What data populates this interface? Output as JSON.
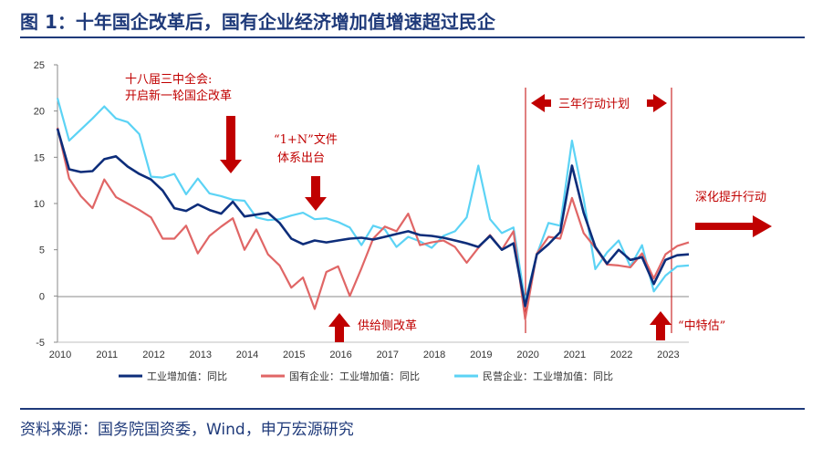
{
  "header": {
    "title": "图 1：十年国企改革后，国有企业经济增加值增速超过民企"
  },
  "footer": {
    "source": "资料来源：国务院国资委，Wind，申万宏源研究"
  },
  "colors": {
    "title": "#1f3a7a",
    "series_total": "#0d2d7a",
    "series_state": "#e06666",
    "series_private": "#5cd3f5",
    "annotation": "#c00000"
  },
  "chart_data": {
    "type": "line",
    "ylim": [
      -5,
      25
    ],
    "yticks": [
      "25",
      "20",
      "15",
      "10",
      "5",
      "0",
      "-5"
    ],
    "xlim": [
      2010,
      2023.5
    ],
    "xticks": [
      "2010",
      "2011",
      "2012",
      "2013",
      "2014",
      "2015",
      "2016",
      "2017",
      "2018",
      "2019",
      "2020",
      "2021",
      "2022",
      "2023"
    ],
    "legend_position": "bottom",
    "series": [
      {
        "name": "工业增加值：同比",
        "color": "#0d2d7a",
        "points": [
          [
            2010.0,
            18.1
          ],
          [
            2010.25,
            13.7
          ],
          [
            2010.5,
            13.4
          ],
          [
            2010.75,
            13.5
          ],
          [
            2011.0,
            14.8
          ],
          [
            2011.25,
            15.1
          ],
          [
            2011.5,
            14.0
          ],
          [
            2011.75,
            13.2
          ],
          [
            2012.0,
            12.6
          ],
          [
            2012.25,
            11.4
          ],
          [
            2012.5,
            9.5
          ],
          [
            2012.75,
            9.2
          ],
          [
            2013.0,
            9.9
          ],
          [
            2013.25,
            9.3
          ],
          [
            2013.5,
            8.9
          ],
          [
            2013.75,
            10.2
          ],
          [
            2014.0,
            8.6
          ],
          [
            2014.25,
            8.8
          ],
          [
            2014.5,
            9.0
          ],
          [
            2014.75,
            7.9
          ],
          [
            2015.0,
            6.2
          ],
          [
            2015.25,
            5.6
          ],
          [
            2015.5,
            6.0
          ],
          [
            2015.75,
            5.8
          ],
          [
            2016.0,
            6.0
          ],
          [
            2016.25,
            6.2
          ],
          [
            2016.5,
            6.3
          ],
          [
            2016.75,
            6.1
          ],
          [
            2017.0,
            6.4
          ],
          [
            2017.25,
            6.7
          ],
          [
            2017.5,
            7.0
          ],
          [
            2017.75,
            6.6
          ],
          [
            2018.0,
            6.5
          ],
          [
            2018.25,
            6.3
          ],
          [
            2018.5,
            6.0
          ],
          [
            2018.75,
            5.7
          ],
          [
            2019.0,
            5.3
          ],
          [
            2019.25,
            6.5
          ],
          [
            2019.5,
            5.0
          ],
          [
            2019.75,
            5.7
          ],
          [
            2020.0,
            -1.1
          ],
          [
            2020.25,
            4.5
          ],
          [
            2020.5,
            5.6
          ],
          [
            2020.75,
            6.9
          ],
          [
            2021.0,
            14.1
          ],
          [
            2021.25,
            9.0
          ],
          [
            2021.5,
            5.3
          ],
          [
            2021.75,
            3.5
          ],
          [
            2022.0,
            5.0
          ],
          [
            2022.25,
            3.9
          ],
          [
            2022.5,
            4.2
          ],
          [
            2022.75,
            1.3
          ],
          [
            2023.0,
            3.9
          ],
          [
            2023.25,
            4.4
          ],
          [
            2023.5,
            4.5
          ]
        ]
      },
      {
        "name": "国有企业：工业增加值：同比",
        "color": "#e06666",
        "points": [
          [
            2010.0,
            18.2
          ],
          [
            2010.25,
            12.7
          ],
          [
            2010.5,
            10.8
          ],
          [
            2010.75,
            9.5
          ],
          [
            2011.0,
            12.6
          ],
          [
            2011.25,
            10.7
          ],
          [
            2011.5,
            10.0
          ],
          [
            2011.75,
            9.3
          ],
          [
            2012.0,
            8.5
          ],
          [
            2012.25,
            6.2
          ],
          [
            2012.5,
            6.2
          ],
          [
            2012.75,
            7.6
          ],
          [
            2013.0,
            4.6
          ],
          [
            2013.25,
            6.5
          ],
          [
            2013.5,
            7.5
          ],
          [
            2013.75,
            8.4
          ],
          [
            2014.0,
            5.0
          ],
          [
            2014.25,
            7.2
          ],
          [
            2014.5,
            4.5
          ],
          [
            2014.75,
            3.3
          ],
          [
            2015.0,
            0.9
          ],
          [
            2015.25,
            2.0
          ],
          [
            2015.5,
            -1.4
          ],
          [
            2015.75,
            2.6
          ],
          [
            2016.0,
            3.2
          ],
          [
            2016.25,
            0.0
          ],
          [
            2016.5,
            3.0
          ],
          [
            2016.75,
            6.2
          ],
          [
            2017.0,
            7.5
          ],
          [
            2017.25,
            7.0
          ],
          [
            2017.5,
            8.9
          ],
          [
            2017.75,
            5.5
          ],
          [
            2018.0,
            5.8
          ],
          [
            2018.25,
            6.0
          ],
          [
            2018.5,
            5.3
          ],
          [
            2018.75,
            3.6
          ],
          [
            2019.0,
            5.2
          ],
          [
            2019.25,
            6.6
          ],
          [
            2019.5,
            5.0
          ],
          [
            2019.75,
            7.0
          ],
          [
            2020.0,
            -2.5
          ],
          [
            2020.25,
            4.6
          ],
          [
            2020.5,
            6.4
          ],
          [
            2020.75,
            6.2
          ],
          [
            2021.0,
            10.6
          ],
          [
            2021.25,
            6.8
          ],
          [
            2021.5,
            5.2
          ],
          [
            2021.75,
            3.4
          ],
          [
            2022.0,
            3.3
          ],
          [
            2022.25,
            3.1
          ],
          [
            2022.5,
            4.6
          ],
          [
            2022.75,
            1.9
          ],
          [
            2023.0,
            4.5
          ],
          [
            2023.25,
            5.4
          ],
          [
            2023.5,
            5.8
          ]
        ]
      },
      {
        "name": "民营企业：工业增加值：同比",
        "color": "#5cd3f5",
        "points": [
          [
            2010.0,
            21.4
          ],
          [
            2010.25,
            16.8
          ],
          [
            2010.5,
            18.0
          ],
          [
            2010.75,
            19.2
          ],
          [
            2011.0,
            20.5
          ],
          [
            2011.25,
            19.2
          ],
          [
            2011.5,
            18.8
          ],
          [
            2011.75,
            17.5
          ],
          [
            2012.0,
            12.9
          ],
          [
            2012.25,
            12.8
          ],
          [
            2012.5,
            13.2
          ],
          [
            2012.75,
            11.0
          ],
          [
            2013.0,
            12.7
          ],
          [
            2013.25,
            11.1
          ],
          [
            2013.5,
            10.8
          ],
          [
            2013.75,
            10.4
          ],
          [
            2014.0,
            10.3
          ],
          [
            2014.25,
            8.5
          ],
          [
            2014.5,
            8.2
          ],
          [
            2014.75,
            8.3
          ],
          [
            2015.0,
            8.7
          ],
          [
            2015.25,
            9.0
          ],
          [
            2015.5,
            8.3
          ],
          [
            2015.75,
            8.4
          ],
          [
            2016.0,
            8.0
          ],
          [
            2016.25,
            7.4
          ],
          [
            2016.5,
            5.5
          ],
          [
            2016.75,
            7.6
          ],
          [
            2017.0,
            7.2
          ],
          [
            2017.25,
            5.3
          ],
          [
            2017.5,
            6.4
          ],
          [
            2017.75,
            5.9
          ],
          [
            2018.0,
            5.2
          ],
          [
            2018.25,
            6.5
          ],
          [
            2018.5,
            7.0
          ],
          [
            2018.75,
            8.5
          ],
          [
            2019.0,
            14.1
          ],
          [
            2019.25,
            8.3
          ],
          [
            2019.5,
            6.8
          ],
          [
            2019.75,
            7.4
          ],
          [
            2020.0,
            -0.6
          ],
          [
            2020.25,
            4.5
          ],
          [
            2020.5,
            7.9
          ],
          [
            2020.75,
            7.6
          ],
          [
            2021.0,
            16.8
          ],
          [
            2021.25,
            10.5
          ],
          [
            2021.5,
            2.9
          ],
          [
            2021.75,
            4.7
          ],
          [
            2022.0,
            6.0
          ],
          [
            2022.25,
            3.2
          ],
          [
            2022.5,
            5.5
          ],
          [
            2022.75,
            0.5
          ],
          [
            2023.0,
            2.2
          ],
          [
            2023.25,
            3.2
          ],
          [
            2023.5,
            3.3
          ]
        ]
      }
    ],
    "annotations": {
      "reform_line1": "十八届三中全会:",
      "reform_line2": "开启新一轮国企改革",
      "onen_line1": "“1+N”文件",
      "onen_line2": "体系出台",
      "supply_side": "供给侧改革",
      "three_year": "三年行动计划",
      "deepen": "深化提升行动",
      "valuation": "“中特估”"
    }
  }
}
